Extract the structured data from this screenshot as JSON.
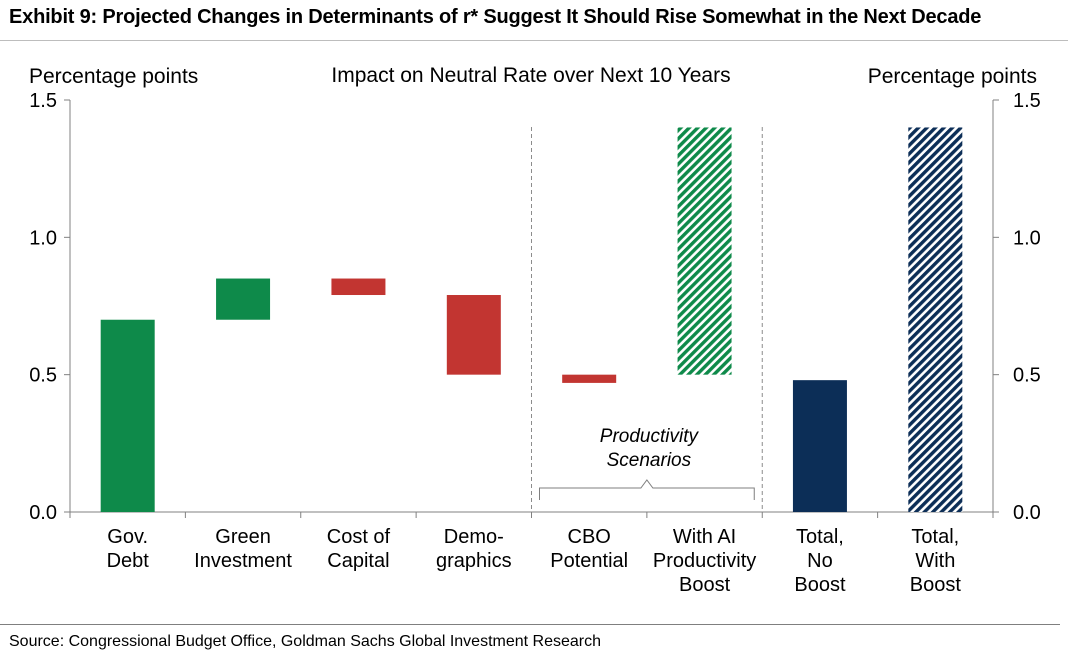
{
  "title": "Exhibit 9: Projected Changes in Determinants of r* Suggest It Should Rise Somewhat in the Next Decade",
  "source": "Source: Congressional Budget Office, Goldman Sachs Global Investment Research",
  "chart_data": {
    "type": "bar",
    "subtitle": "Impact on Neutral Rate over Next 10 Years",
    "ylabel_left": "Percentage points",
    "ylabel_right": "Percentage points",
    "ylim": [
      0,
      1.5
    ],
    "yticks": [
      "0.0",
      "0.5",
      "1.0",
      "1.5"
    ],
    "grid": false,
    "categories": [
      [
        "Gov.",
        "Debt"
      ],
      [
        "Green",
        "Investment"
      ],
      [
        "Cost of",
        "Capital"
      ],
      [
        "Demo-",
        "graphics"
      ],
      [
        "CBO",
        "Potential"
      ],
      [
        "With AI",
        "Productivity",
        "Boost"
      ],
      [
        "Total,",
        "No",
        "Boost"
      ],
      [
        "Total,",
        "With",
        "Boost"
      ]
    ],
    "bars": [
      {
        "bottom": 0.0,
        "top": 0.7,
        "color": "#0e8a4a",
        "pattern": "solid"
      },
      {
        "bottom": 0.7,
        "top": 0.85,
        "color": "#0e8a4a",
        "pattern": "solid"
      },
      {
        "bottom": 0.79,
        "top": 0.85,
        "color": "#c23531",
        "pattern": "solid"
      },
      {
        "bottom": 0.5,
        "top": 0.79,
        "color": "#c23531",
        "pattern": "solid"
      },
      {
        "bottom": 0.47,
        "top": 0.5,
        "color": "#c23531",
        "pattern": "solid"
      },
      {
        "bottom": 0.5,
        "top": 1.4,
        "color": "#0e8a4a",
        "pattern": "hatched"
      },
      {
        "bottom": 0.0,
        "top": 0.48,
        "color": "#0c2e57",
        "pattern": "solid"
      },
      {
        "bottom": 0.0,
        "top": 1.4,
        "color": "#0c2e57",
        "pattern": "hatched"
      }
    ],
    "annotation": {
      "lines": [
        "Productivity",
        "Scenarios"
      ],
      "span": [
        4,
        5
      ]
    }
  }
}
